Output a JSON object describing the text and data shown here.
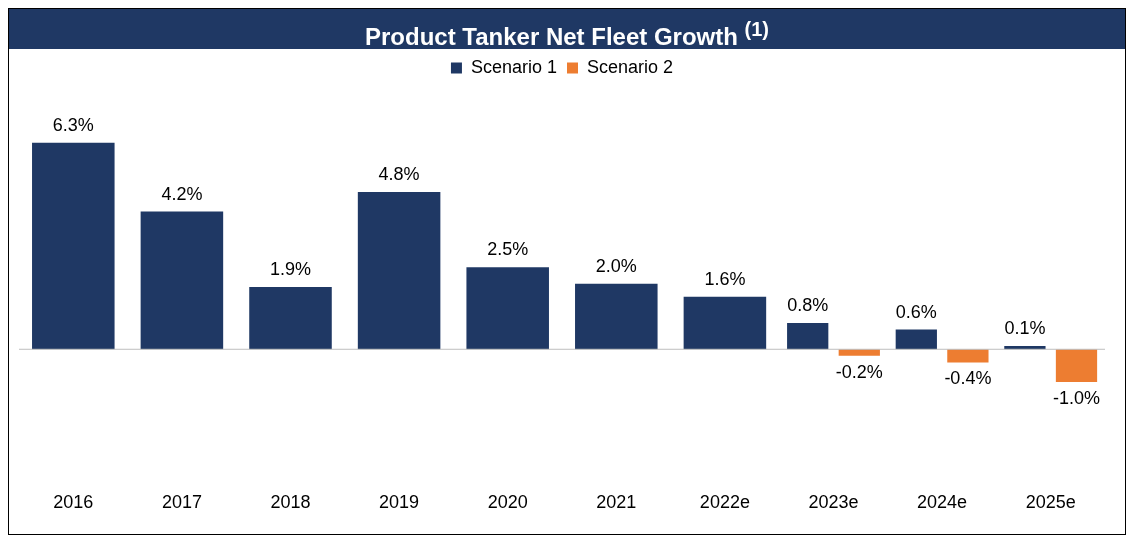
{
  "chart_data": {
    "type": "bar",
    "title": "Product Tanker Net Fleet Growth $^{(1)}$",
    "categories": [
      "2016",
      "2017",
      "2018",
      "2019",
      "2020",
      "2021",
      "2022e",
      "2023e",
      "2024e",
      "2025e"
    ],
    "series": [
      {
        "name": "Scenario 1",
        "color": "#1f3864",
        "values": [
          6.3,
          4.2,
          1.9,
          4.8,
          2.5,
          2.0,
          1.6,
          0.8,
          0.6,
          0.1
        ],
        "value_labels": [
          "6.3%",
          "4.2%",
          "1.9%",
          "4.8%",
          "2.5%",
          "2.0%",
          "1.6%",
          "0.8%",
          "0.6%",
          "0.1%"
        ]
      },
      {
        "name": "Scenario 2",
        "color": "#ed7d31",
        "values": [
          null,
          null,
          null,
          null,
          null,
          null,
          null,
          -0.2,
          -0.4,
          -1.0
        ],
        "value_labels": [
          null,
          null,
          null,
          null,
          null,
          null,
          null,
          "-0.2%",
          "-0.4%",
          "-1.0%"
        ]
      }
    ],
    "tick_labels": "x",
    "legend": "top",
    "grid": false
  }
}
